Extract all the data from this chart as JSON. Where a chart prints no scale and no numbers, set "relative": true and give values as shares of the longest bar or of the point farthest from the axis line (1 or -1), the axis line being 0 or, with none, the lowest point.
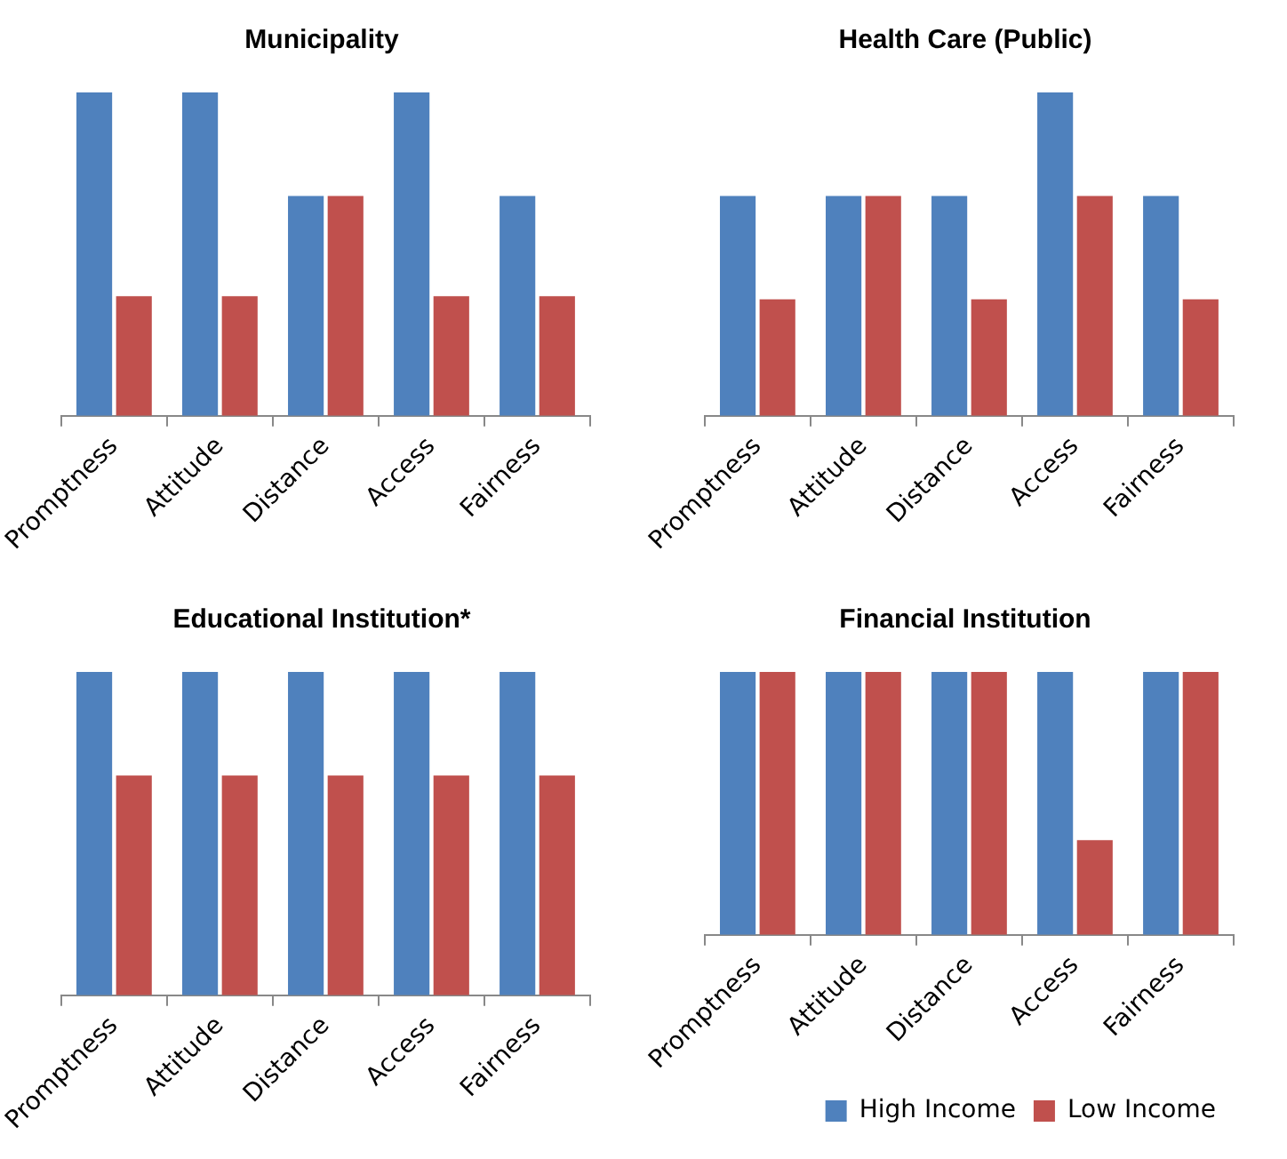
{
  "chart_data": [
    {
      "type": "bar",
      "title": "Municipality",
      "relative": true,
      "grid": false,
      "legend": false,
      "categories": [
        "Promptness",
        "Attitude",
        "Distance",
        "Access",
        "Fairness"
      ],
      "series": [
        {
          "color": "#4f81bd",
          "values": [
            1,
            1,
            0.68,
            1,
            0.68
          ]
        },
        {
          "color": "#c0504d",
          "values": [
            0.37,
            0.37,
            0.68,
            0.37,
            0.37
          ]
        }
      ]
    },
    {
      "type": "bar",
      "title": "Health Care (Public)",
      "relative": true,
      "grid": false,
      "legend": false,
      "categories": [
        "Promptness",
        "Attitude",
        "Distance",
        "Access",
        "Fairness"
      ],
      "series": [
        {
          "color": "#4f81bd",
          "values": [
            0.68,
            0.68,
            0.68,
            1,
            0.68
          ]
        },
        {
          "color": "#c0504d",
          "values": [
            0.36,
            0.68,
            0.36,
            0.68,
            0.36
          ]
        }
      ]
    },
    {
      "type": "bar",
      "title": "Educational Institution*",
      "relative": true,
      "grid": false,
      "legend": false,
      "categories": [
        "Promptness",
        "Attitude",
        "Distance",
        "Access",
        "Fairness"
      ],
      "series": [
        {
          "color": "#4f81bd",
          "values": [
            1,
            1,
            1,
            1,
            1
          ]
        },
        {
          "color": "#c0504d",
          "values": [
            0.68,
            0.68,
            0.68,
            0.68,
            0.68
          ]
        }
      ]
    },
    {
      "type": "bar",
      "title": "Financial Institution",
      "relative": true,
      "grid": false,
      "legend": "bottom right",
      "categories": [
        "Promptness",
        "Attitude",
        "Distance",
        "Access",
        "Fairness"
      ],
      "series": [
        {
          "name": "High Income",
          "color": "#4f81bd",
          "values": [
            1,
            1,
            1,
            1,
            1
          ]
        },
        {
          "name": "Low Income",
          "color": "#c0504d",
          "values": [
            1,
            1,
            1,
            0.36,
            1
          ]
        }
      ]
    }
  ]
}
